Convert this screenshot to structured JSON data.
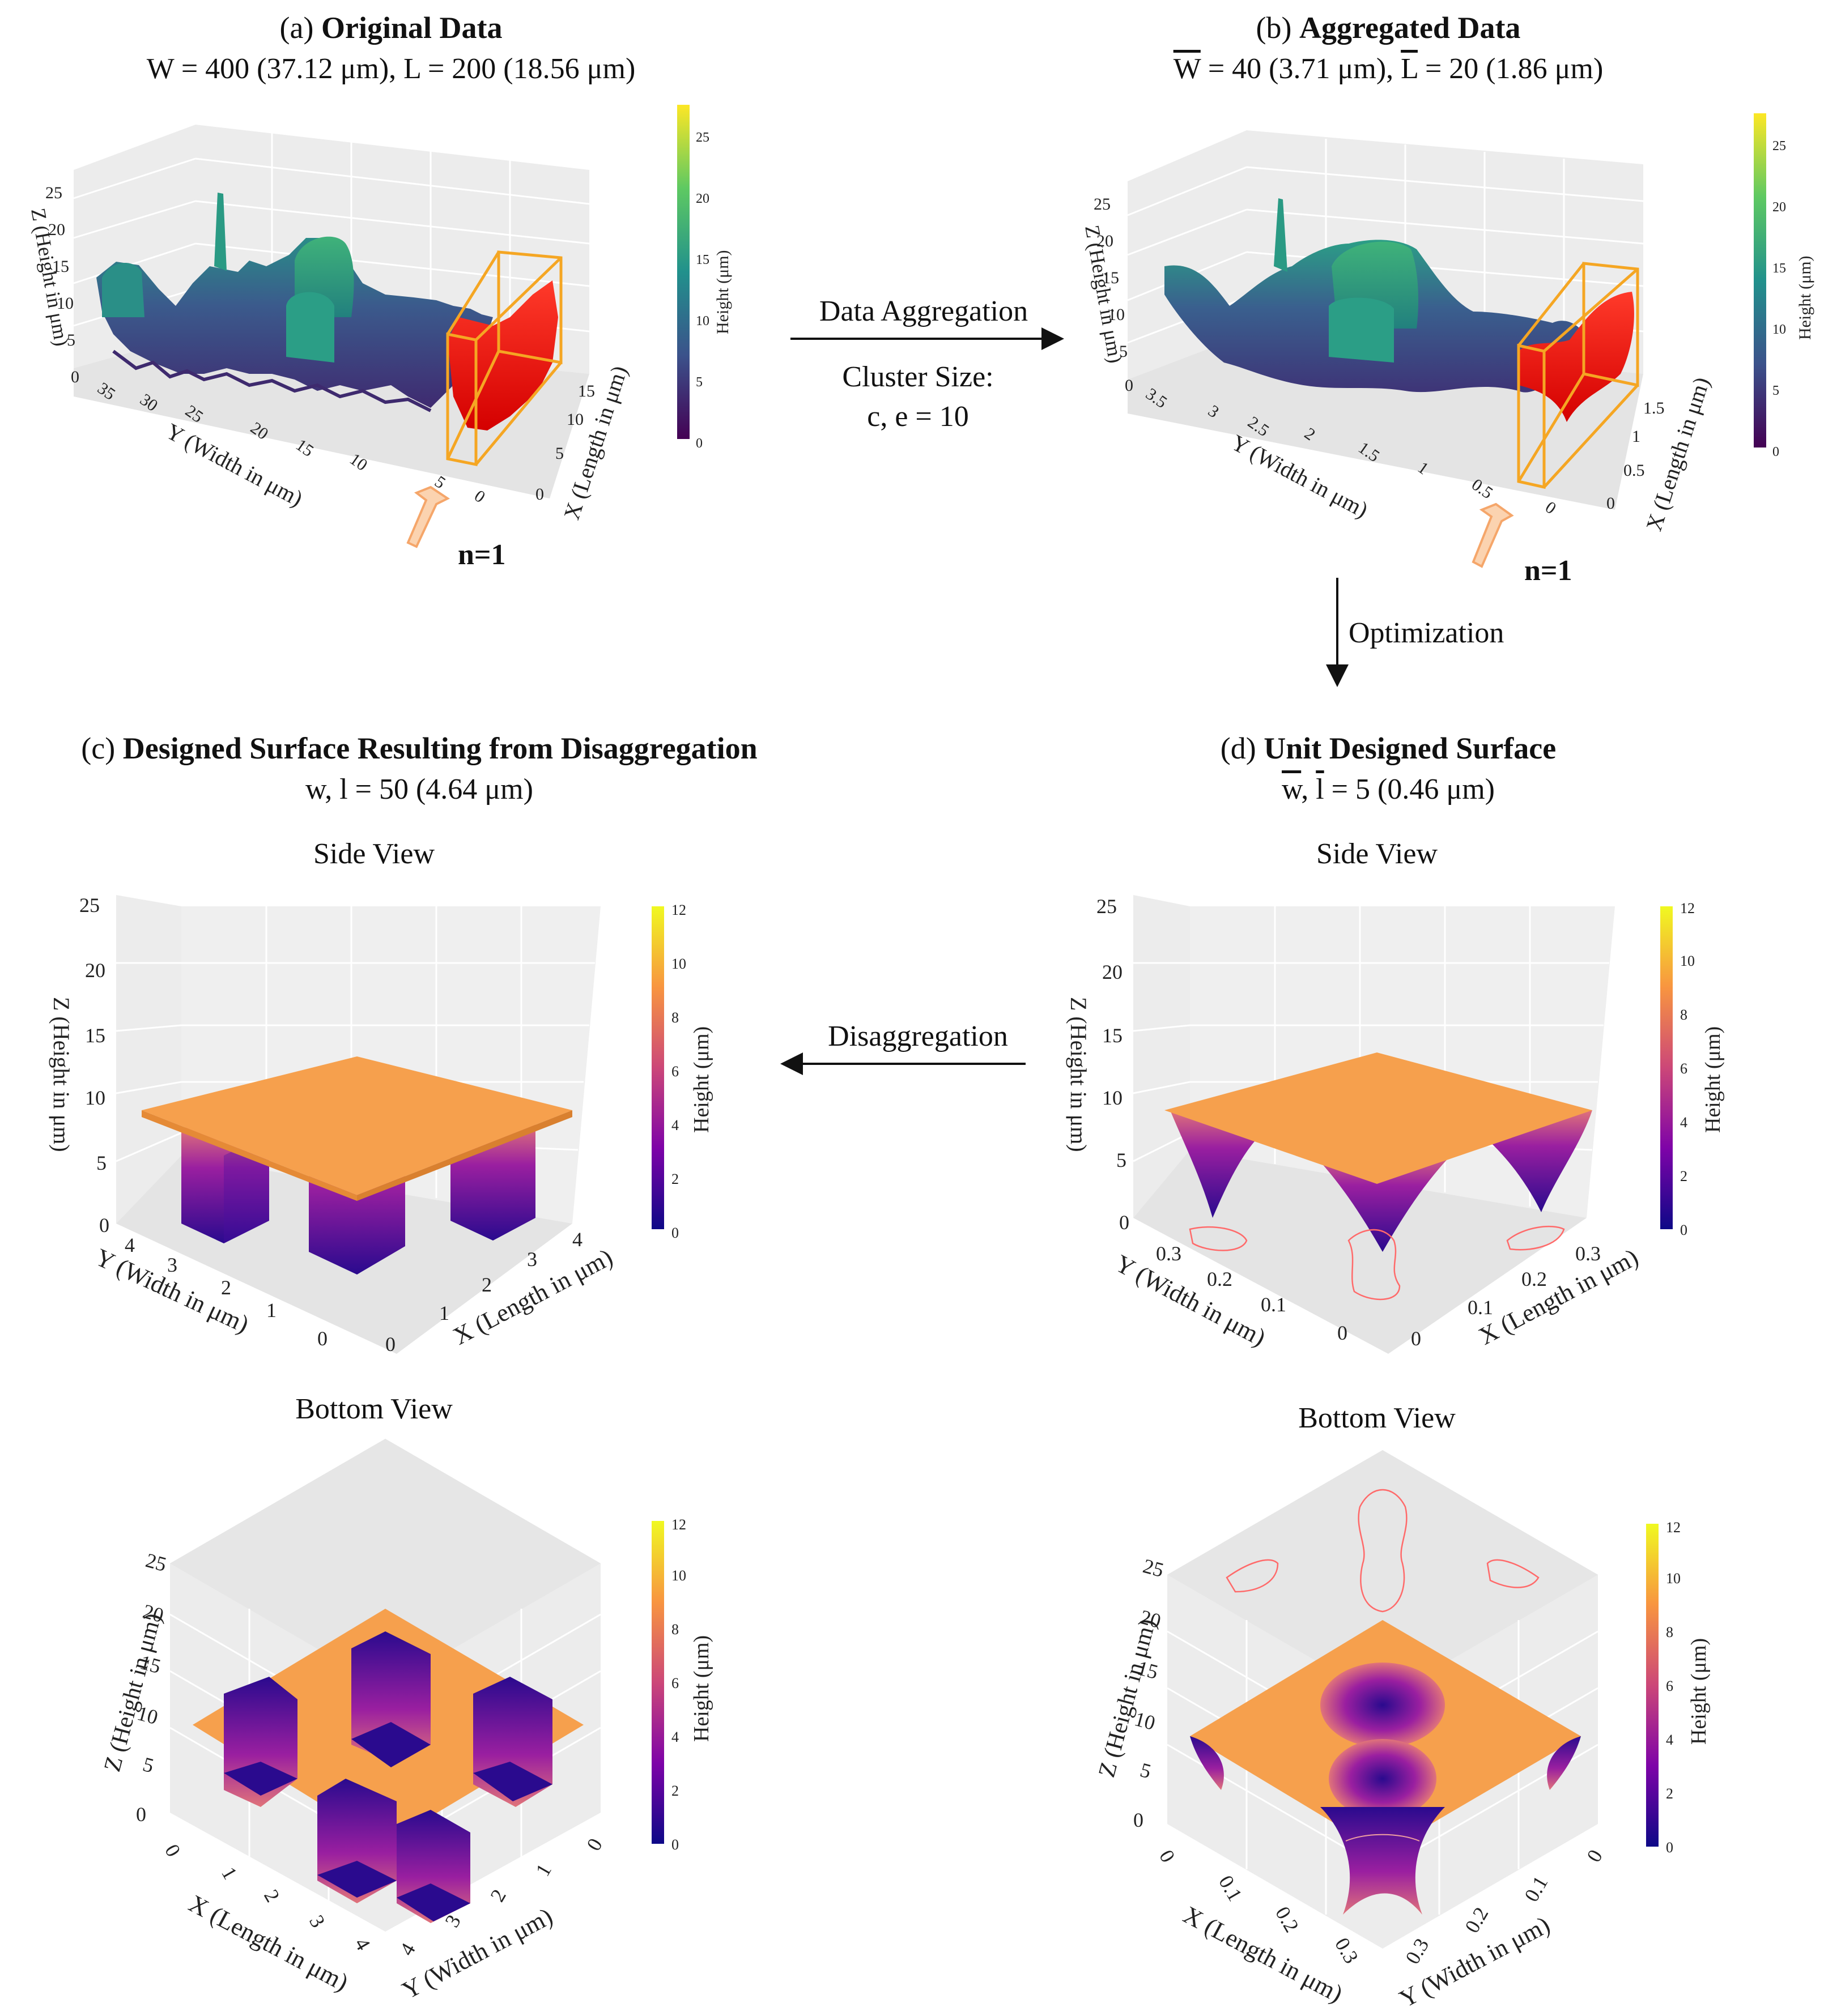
{
  "panel_a": {
    "letter": "(a)",
    "title": "Original Data",
    "dims": "W = 400 (37.12 μm), L = 200 (18.56 μm)",
    "axes": {
      "x": "X (Length in μm)",
      "y": "Y (Width in μm)",
      "z": "Z (Height in μm)"
    },
    "x_ticks": [
      "0",
      "5",
      "10",
      "15"
    ],
    "y_ticks": [
      "35",
      "30",
      "25",
      "20",
      "15",
      "10",
      "5",
      "0"
    ],
    "z_ticks": [
      "0",
      "5",
      "10",
      "15",
      "20",
      "25"
    ],
    "colorbar": {
      "title": "Height (μm)",
      "ticks": [
        "0",
        "5",
        "10",
        "15",
        "20",
        "25"
      ]
    },
    "marker": "n=1"
  },
  "panel_b": {
    "letter": "(b)",
    "title": "Aggregated Data",
    "w_sym": "W",
    "w_val": " = 40 (3.71 μm), ",
    "l_sym": "L",
    "l_val": " = 20 (1.86 μm)",
    "axes": {
      "x": "X (Length in μm)",
      "y": "Y (Width in μm)",
      "z": "Z (Height in μm)"
    },
    "x_ticks": [
      "0",
      "0.5",
      "1",
      "1.5"
    ],
    "y_ticks": [
      "3.5",
      "3",
      "2.5",
      "2",
      "1.5",
      "1",
      "0.5",
      "0"
    ],
    "z_ticks": [
      "0",
      "5",
      "10",
      "15",
      "20",
      "25"
    ],
    "colorbar": {
      "title": "Height (μm)",
      "ticks": [
        "0",
        "5",
        "10",
        "15",
        "20",
        "25"
      ]
    },
    "marker": "n=1"
  },
  "panel_c": {
    "letter": "(c)",
    "title": "Designed Surface Resulting from Disaggregation",
    "dims": "w, l = 50 (4.64 μm)",
    "side_view": {
      "label": "Side View",
      "axes": {
        "x": "X (Length in μm)",
        "y": "Y (Width in μm)",
        "z": "Z (Height in μm)"
      },
      "x_ticks": [
        "0",
        "1",
        "2",
        "3",
        "4"
      ],
      "y_ticks": [
        "4",
        "3",
        "2",
        "1",
        "0"
      ],
      "z_ticks": [
        "0",
        "5",
        "10",
        "15",
        "20",
        "25"
      ]
    },
    "bottom_view": {
      "label": "Bottom View",
      "axes": {
        "x": "X (Length in μm)",
        "y": "Y (Width in μm)",
        "z": "Z (Height in μm)"
      },
      "x_ticks": [
        "0",
        "1",
        "2",
        "3",
        "4"
      ],
      "y_ticks": [
        "4",
        "3",
        "2",
        "1",
        "0"
      ],
      "z_ticks": [
        "0",
        "5",
        "10",
        "15",
        "20",
        "25"
      ]
    },
    "colorbar": {
      "title": "Height (μm)",
      "ticks": [
        "0",
        "2",
        "4",
        "6",
        "8",
        "10",
        "12"
      ]
    }
  },
  "panel_d": {
    "letter": "(d)",
    "title": "Unit Designed Surface",
    "w_sym": "w",
    "sep": ", ",
    "l_sym": "l",
    "dims_rest": " = 5 (0.46 μm)",
    "side_view": {
      "label": "Side View",
      "axes": {
        "x": "X (Length in μm)",
        "y": "Y (Width in μm)",
        "z": "Z (Height in μm)"
      },
      "x_ticks": [
        "0",
        "0.1",
        "0.2",
        "0.3"
      ],
      "y_ticks": [
        "0.3",
        "0.2",
        "0.1",
        "0"
      ],
      "z_ticks": [
        "0",
        "5",
        "10",
        "15",
        "20",
        "25"
      ]
    },
    "bottom_view": {
      "label": "Bottom View",
      "axes": {
        "x": "X (Length in μm)",
        "y": "Y (Width in μm)",
        "z": "Z (Height in μm)"
      },
      "x_ticks": [
        "0",
        "0.1",
        "0.2",
        "0.3"
      ],
      "y_ticks": [
        "0.3",
        "0.2",
        "0.1",
        "0"
      ],
      "z_ticks": [
        "0",
        "5",
        "10",
        "15",
        "20",
        "25"
      ]
    },
    "colorbar": {
      "title": "Height (μm)",
      "ticks": [
        "0",
        "2",
        "4",
        "6",
        "8",
        "10",
        "12"
      ]
    }
  },
  "flow": {
    "aggregation": "Data Aggregation",
    "cluster_label": "Cluster Size:",
    "cluster_value": "c, e = 10",
    "optimization": "Optimization",
    "disaggregation": "Disaggregation"
  },
  "colors": {
    "viridis": [
      "#440154",
      "#3b528b",
      "#21918c",
      "#5ec962",
      "#fde725"
    ],
    "plasma": [
      "#0d0887",
      "#7e03a8",
      "#cc4778",
      "#f89540",
      "#f0f921"
    ],
    "highlight_red": "#ff1a1a",
    "box_orange": "#f5a623",
    "top_orange": "#f6a04d"
  }
}
